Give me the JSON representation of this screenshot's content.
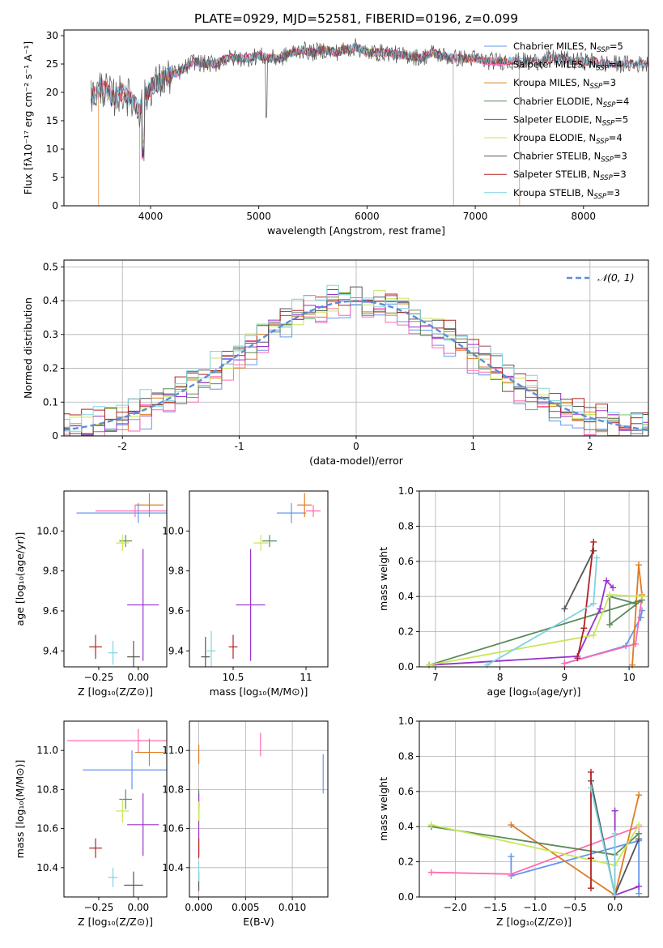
{
  "chart_data": [
    {
      "id": "spectrum",
      "type": "line",
      "title": "PLATE=0929, MJD=52581, FIBERID=0196, z=0.099",
      "xlabel": "wavelength [Angstrom, rest frame]",
      "ylabel": "Flux [fλ10⁻¹⁷ erg cm⁻² s⁻¹ A⁻¹]",
      "xlim": [
        3200,
        8600
      ],
      "ylim": [
        0,
        31
      ],
      "xticks": [
        4000,
        5000,
        6000,
        7000,
        8000
      ],
      "yticks": [
        0,
        5,
        10,
        15,
        20,
        25,
        30
      ],
      "grid": false,
      "legend_position": "right",
      "spectrum_profile": {
        "x": [
          3450,
          3550,
          3650,
          3750,
          3850,
          3900,
          3950,
          4000,
          4100,
          4200,
          4300,
          4400,
          4500,
          4600,
          4700,
          4800,
          4900,
          5000,
          5100,
          5200,
          5300,
          5400,
          5500,
          5600,
          5700,
          5800,
          5900,
          6000,
          6100,
          6200,
          6300,
          6400,
          6500,
          6600,
          6700,
          6800,
          6900,
          7000,
          7100,
          7200,
          7300,
          7400,
          7500,
          7600,
          7700,
          7800,
          7900,
          8000,
          8100,
          8200,
          8300,
          8400,
          8500,
          8600
        ],
        "y": [
          19,
          21,
          19,
          20,
          18,
          17,
          19,
          21,
          22,
          23,
          24,
          25.5,
          25,
          25,
          26,
          26,
          26,
          26.5,
          26,
          26,
          27,
          27.5,
          27,
          27.5,
          27,
          27.5,
          28,
          27,
          27,
          27,
          26.5,
          26.5,
          26,
          27,
          26.5,
          26,
          26,
          26,
          25.5,
          25.5,
          25.5,
          25.5,
          25.5,
          25.5,
          26,
          26,
          25.5,
          25.5,
          25.5,
          25,
          25,
          25,
          25,
          25
        ]
      },
      "series": [
        {
          "name": "Chabrier MILES, N",
          "sub": "SSP",
          "suffix": "=5",
          "color": "#6495ed",
          "range": [
            3450,
            8600
          ]
        },
        {
          "name": "Salpeter MILES, N",
          "sub": "SSP",
          "suffix": "=4",
          "color": "#ff69b4",
          "range": [
            3450,
            8600
          ]
        },
        {
          "name": "Kroupa MILES, N",
          "sub": "SSP",
          "suffix": "=3",
          "color": "#e07b22",
          "range": [
            3520,
            7410
          ]
        },
        {
          "name": "Chabrier ELODIE, N",
          "sub": "SSP",
          "suffix": "=4",
          "color": "#5b8a5b",
          "range": [
            3900,
            6800
          ]
        },
        {
          "name": "Salpeter ELODIE, N",
          "sub": "SSP",
          "suffix": "=5",
          "color": "#9932cc",
          "range": [
            3900,
            6800
          ]
        },
        {
          "name": "Kroupa ELODIE, N",
          "sub": "SSP",
          "suffix": "=4",
          "color": "#c8e65a",
          "range": [
            3900,
            6800
          ]
        },
        {
          "name": "Chabrier STELIB, N",
          "sub": "SSP",
          "suffix": "=3",
          "color": "#555555",
          "range": [
            3450,
            8600
          ]
        },
        {
          "name": "Salpeter STELIB, N",
          "sub": "SSP",
          "suffix": "=3",
          "color": "#b22222",
          "range": [
            3450,
            8600
          ]
        },
        {
          "name": "Kroupa STELIB, N",
          "sub": "SSP",
          "suffix": "=3",
          "color": "#7fd4e0",
          "range": [
            3450,
            8600
          ]
        }
      ]
    },
    {
      "id": "residuals",
      "type": "line",
      "xlabel": "(data-model)/error",
      "ylabel": "Normed distribution",
      "xlim": [
        -2.5,
        2.5
      ],
      "ylim": [
        0,
        0.52
      ],
      "xticks": [
        -2,
        -1,
        0,
        1,
        2
      ],
      "yticks": [
        0.0,
        0.1,
        0.2,
        0.3,
        0.4,
        0.5
      ],
      "grid": true,
      "legend_position": "top-right",
      "gaussian_label": "𝒩(0, 1)",
      "gaussian_color": "#5b8fd6"
    },
    {
      "id": "age_vs_Z",
      "type": "scatter",
      "xlabel": "Z [log₁₀(Z/Z⊙)]",
      "ylabel": "age  [log₁₀(age/yr)]",
      "xlim": [
        -0.47,
        0.18
      ],
      "ylim": [
        9.32,
        10.2
      ],
      "xticks": [
        -0.25,
        0.0
      ],
      "xticklabels": [
        "−0.25",
        "0.00"
      ],
      "yticks": [
        9.4,
        9.6,
        9.8,
        10.0
      ],
      "grid": false,
      "points": [
        {
          "model": "Chabrier MILES",
          "x": 0.0,
          "y": 10.09,
          "xerr": 0.39,
          "yerr": 0.05
        },
        {
          "model": "Salpeter MILES",
          "x": -0.02,
          "y": 10.1,
          "xerr": 0.25,
          "yerr": 0.03
        },
        {
          "model": "Kroupa MILES",
          "x": 0.07,
          "y": 10.13,
          "xerr": 0.09,
          "yerr": 0.06
        },
        {
          "model": "Chabrier ELODIE",
          "x": -0.08,
          "y": 9.95,
          "xerr": 0.04,
          "yerr": 0.03
        },
        {
          "model": "Salpeter ELODIE",
          "x": 0.03,
          "y": 9.63,
          "xerr": 0.1,
          "yerr": 0.28
        },
        {
          "model": "Kroupa ELODIE",
          "x": -0.1,
          "y": 9.94,
          "xerr": 0.04,
          "yerr": 0.04
        },
        {
          "model": "Chabrier STELIB",
          "x": -0.03,
          "y": 9.37,
          "xerr": 0.04,
          "yerr": 0.08
        },
        {
          "model": "Salpeter STELIB",
          "x": -0.27,
          "y": 9.42,
          "xerr": 0.04,
          "yerr": 0.06
        },
        {
          "model": "Kroupa STELIB",
          "x": -0.16,
          "y": 9.39,
          "xerr": 0.03,
          "yerr": 0.06
        }
      ]
    },
    {
      "id": "age_vs_mass",
      "type": "scatter",
      "xlabel": "mass [log₁₀(M/M⊙)]",
      "ylabel": "",
      "xlim": [
        10.2,
        11.15
      ],
      "ylim": [
        9.32,
        10.2
      ],
      "xticks": [
        10.5,
        11.0
      ],
      "yticks": [
        9.4,
        9.6,
        9.8,
        10.0
      ],
      "grid": false,
      "points": [
        {
          "model": "Chabrier MILES",
          "x": 10.9,
          "y": 10.09,
          "xerr": 0.1,
          "yerr": 0.05
        },
        {
          "model": "Salpeter MILES",
          "x": 11.05,
          "y": 10.1,
          "xerr": 0.05,
          "yerr": 0.03
        },
        {
          "model": "Kroupa MILES",
          "x": 10.99,
          "y": 10.13,
          "xerr": 0.05,
          "yerr": 0.06
        },
        {
          "model": "Chabrier ELODIE",
          "x": 10.75,
          "y": 9.95,
          "xerr": 0.05,
          "yerr": 0.03
        },
        {
          "model": "Salpeter ELODIE",
          "x": 10.62,
          "y": 9.63,
          "xerr": 0.1,
          "yerr": 0.28
        },
        {
          "model": "Kroupa ELODIE",
          "x": 10.69,
          "y": 9.94,
          "xerr": 0.05,
          "yerr": 0.04
        },
        {
          "model": "Chabrier STELIB",
          "x": 10.31,
          "y": 9.37,
          "xerr": 0.03,
          "yerr": 0.1
        },
        {
          "model": "Salpeter STELIB",
          "x": 10.5,
          "y": 9.42,
          "xerr": 0.03,
          "yerr": 0.06
        },
        {
          "model": "Kroupa STELIB",
          "x": 10.35,
          "y": 9.4,
          "xerr": 0.03,
          "yerr": 0.1
        }
      ]
    },
    {
      "id": "massweight_vs_age",
      "type": "line",
      "xlabel": "age  [log₁₀(age/yr)]",
      "ylabel": "mass weight",
      "xlim": [
        6.75,
        10.3
      ],
      "ylim": [
        0,
        1
      ],
      "xticks": [
        7,
        8,
        9,
        10
      ],
      "yticks": [
        0.0,
        0.2,
        0.4,
        0.6,
        0.8,
        1.0
      ],
      "grid": true,
      "series": [
        {
          "model": "Chabrier MILES",
          "x": [
            9.0,
            9.95,
            10.18,
            10.2
          ],
          "y": [
            0.02,
            0.12,
            0.28,
            0.32
          ]
        },
        {
          "model": "Salpeter MILES",
          "x": [
            9.0,
            10.1,
            10.2
          ],
          "y": [
            0.02,
            0.13,
            0.4
          ]
        },
        {
          "model": "Kroupa MILES",
          "x": [
            10.05,
            10.15,
            10.2
          ],
          "y": [
            0.01,
            0.58,
            0.41
          ]
        },
        {
          "model": "Chabrier ELODIE",
          "x": [
            6.9,
            10.2,
            9.7,
            9.7,
            10.1
          ],
          "y": [
            0.01,
            0.38,
            0.24,
            0.4,
            0.36
          ]
        },
        {
          "model": "Salpeter ELODIE",
          "x": [
            6.9,
            9.2,
            9.55,
            9.65,
            9.75
          ],
          "y": [
            0.01,
            0.06,
            0.33,
            0.49,
            0.45
          ]
        },
        {
          "model": "Kroupa ELODIE",
          "x": [
            6.9,
            9.45,
            9.7,
            10.2
          ],
          "y": [
            0.01,
            0.18,
            0.41,
            0.4
          ]
        },
        {
          "model": "Chabrier STELIB",
          "x": [
            9.0,
            9.45
          ],
          "y": [
            0.33,
            0.66
          ]
        },
        {
          "model": "Salpeter STELIB",
          "x": [
            9.2,
            9.3,
            9.45
          ],
          "y": [
            0.05,
            0.22,
            0.71
          ]
        },
        {
          "model": "Kroupa STELIB",
          "x": [
            7.8,
            9.45,
            9.5
          ],
          "y": [
            0.01,
            0.36,
            0.62
          ]
        }
      ]
    },
    {
      "id": "mass_vs_Z",
      "type": "scatter",
      "xlabel": "Z [log₁₀(Z/Z⊙)]",
      "ylabel": "mass [log₁₀(M/M⊙)]",
      "xlim": [
        -0.47,
        0.18
      ],
      "ylim": [
        10.25,
        11.15
      ],
      "xticks": [
        -0.25,
        0.0
      ],
      "xticklabels": [
        "−0.25",
        "0.00"
      ],
      "yticks": [
        10.4,
        10.6,
        10.8,
        11.0
      ],
      "grid": false,
      "points": [
        {
          "model": "Chabrier MILES",
          "x": -0.04,
          "y": 10.9,
          "xerr": 0.31,
          "yerr": 0.1
        },
        {
          "model": "Salpeter MILES",
          "x": 0.0,
          "y": 11.05,
          "xerr": 0.45,
          "yerr": 0.06
        },
        {
          "model": "Kroupa MILES",
          "x": 0.07,
          "y": 10.99,
          "xerr": 0.09,
          "yerr": 0.07
        },
        {
          "model": "Chabrier ELODIE",
          "x": -0.08,
          "y": 10.75,
          "xerr": 0.04,
          "yerr": 0.05
        },
        {
          "model": "Salpeter ELODIE",
          "x": 0.03,
          "y": 10.62,
          "xerr": 0.1,
          "yerr": 0.16
        },
        {
          "model": "Kroupa ELODIE",
          "x": -0.1,
          "y": 10.69,
          "xerr": 0.04,
          "yerr": 0.06
        },
        {
          "model": "Chabrier STELIB",
          "x": -0.03,
          "y": 10.31,
          "xerr": 0.06,
          "yerr": 0.07
        },
        {
          "model": "Salpeter STELIB",
          "x": -0.27,
          "y": 10.5,
          "xerr": 0.04,
          "yerr": 0.05
        },
        {
          "model": "Kroupa STELIB",
          "x": -0.16,
          "y": 10.35,
          "xerr": 0.03,
          "yerr": 0.05
        }
      ]
    },
    {
      "id": "mass_vs_EBV",
      "type": "scatter",
      "xlabel": "E(B-V)",
      "ylabel": "",
      "xlim": [
        -0.001,
        0.0138
      ],
      "ylim": [
        10.25,
        11.15
      ],
      "xticks": [
        0.0,
        0.005,
        0.01
      ],
      "xticklabels": [
        "0.000",
        "0.005",
        "0.010"
      ],
      "yticks": [
        10.4,
        10.6,
        10.8,
        11.0
      ],
      "grid": true,
      "points": [
        {
          "model": "Chabrier MILES",
          "x": 0.0133,
          "y": 10.88,
          "xerr": 0,
          "yerr": 0.1
        },
        {
          "model": "Salpeter MILES",
          "x": 0.0066,
          "y": 11.03,
          "xerr": 0,
          "yerr": 0.06
        },
        {
          "model": "Kroupa MILES",
          "x": 0.0,
          "y": 10.98,
          "xerr": 0,
          "yerr": 0.05
        },
        {
          "model": "Chabrier ELODIE",
          "x": 0.0,
          "y": 10.75,
          "xerr": 0,
          "yerr": 0.05
        },
        {
          "model": "Salpeter ELODIE",
          "x": 0.0,
          "y": 10.62,
          "xerr": 0,
          "yerr": 0.16
        },
        {
          "model": "Kroupa ELODIE",
          "x": 0.0,
          "y": 10.69,
          "xerr": 0,
          "yerr": 0.05
        },
        {
          "model": "Chabrier STELIB",
          "x": 0.0,
          "y": 10.33,
          "xerr": 0,
          "yerr": 0.05
        },
        {
          "model": "Salpeter STELIB",
          "x": 0.0,
          "y": 10.5,
          "xerr": 0,
          "yerr": 0.05
        },
        {
          "model": "Kroupa STELIB",
          "x": 0.0,
          "y": 10.38,
          "xerr": 0,
          "yerr": 0.05
        }
      ]
    },
    {
      "id": "massweight_vs_Z",
      "type": "line",
      "xlabel": "Z [log₁₀(Z/Z⊙)]",
      "ylabel": "mass weight",
      "xlim": [
        -2.45,
        0.42
      ],
      "ylim": [
        0,
        1
      ],
      "xticks": [
        -2.0,
        -1.5,
        -1.0,
        -0.5,
        0.0
      ],
      "xticklabels": [
        "−2.0",
        "−1.5",
        "−1.0",
        "−0.5",
        "0.0"
      ],
      "yticks": [
        0.0,
        0.2,
        0.4,
        0.6,
        0.8,
        1.0
      ],
      "grid": true,
      "series": [
        {
          "model": "Chabrier MILES",
          "x": [
            -1.3,
            -1.3,
            0.3,
            0.3
          ],
          "y": [
            0.23,
            0.12,
            0.32,
            0.02
          ]
        },
        {
          "model": "Salpeter MILES",
          "x": [
            -2.3,
            -1.3,
            0.3
          ],
          "y": [
            0.14,
            0.13,
            0.4
          ]
        },
        {
          "model": "Kroupa MILES",
          "x": [
            -1.3,
            0.0,
            0.3
          ],
          "y": [
            0.41,
            0.01,
            0.58
          ]
        },
        {
          "model": "Chabrier ELODIE",
          "x": [
            -2.3,
            0.0,
            0.3
          ],
          "y": [
            0.4,
            0.24,
            0.36
          ]
        },
        {
          "model": "Salpeter ELODIE",
          "x": [
            0.0,
            0.0,
            0.3
          ],
          "y": [
            0.49,
            0.01,
            0.06
          ]
        },
        {
          "model": "Kroupa ELODIE",
          "x": [
            -2.3,
            0.0,
            0.3
          ],
          "y": [
            0.41,
            0.18,
            0.41
          ]
        },
        {
          "model": "Chabrier STELIB",
          "x": [
            -0.3,
            0.0,
            0.3
          ],
          "y": [
            0.66,
            0.01,
            0.33
          ]
        },
        {
          "model": "Salpeter STELIB",
          "x": [
            -0.3,
            -0.3,
            -0.3
          ],
          "y": [
            0.22,
            0.71,
            0.05
          ]
        },
        {
          "model": "Kroupa STELIB",
          "x": [
            -0.3,
            0.0,
            0.0
          ],
          "y": [
            0.62,
            0.01,
            0.36
          ]
        }
      ]
    }
  ]
}
